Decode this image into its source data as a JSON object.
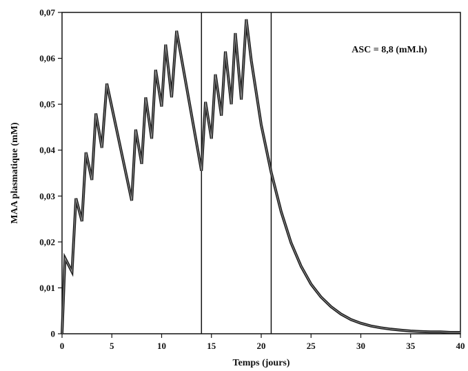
{
  "chart_data": {
    "type": "line",
    "title": "",
    "xlabel": "Temps (jours)",
    "ylabel": "MAA plasmatique (mM)",
    "xlim": [
      0,
      40
    ],
    "ylim": [
      0,
      0.07
    ],
    "grid": false,
    "x_ticks": [
      0,
      5,
      10,
      15,
      20,
      25,
      30,
      35,
      40
    ],
    "x_tick_labels": [
      "0",
      "5",
      "10",
      "15",
      "20",
      "25",
      "30",
      "35",
      "40"
    ],
    "y_ticks": [
      0,
      0.01,
      0.02,
      0.03,
      0.04,
      0.05,
      0.06,
      0.07
    ],
    "y_tick_labels": [
      "0",
      "0,01",
      "0,02",
      "0,03",
      "0,04",
      "0,05",
      "0,06",
      "0,07"
    ],
    "annotation": "ASC = 8,8 (mM.h)",
    "vertical_lines_x": [
      14,
      21
    ],
    "series": [
      {
        "color": "#1a1a1a",
        "x": [
          0,
          0.3,
          1.0,
          1.4,
          2.0,
          2.4,
          3.0,
          3.4,
          4.0,
          4.5,
          7.0,
          7.4,
          8.0,
          8.4,
          9.0,
          9.4,
          10.0,
          10.4,
          11.0,
          11.5,
          14.0,
          14.4,
          15.0,
          15.4,
          16.0,
          16.4,
          17.0,
          17.4,
          18.0,
          18.5,
          19.0,
          20.0,
          21.0,
          22.0,
          23.0,
          24.0,
          25.0,
          26.0,
          27.0,
          28.0,
          29.0,
          30.0,
          31.0,
          32.0,
          33.0,
          34.0,
          35.0,
          36.0,
          37.0,
          38.0,
          39.0,
          40.0
        ],
        "y": [
          0,
          0.0165,
          0.0135,
          0.0295,
          0.0245,
          0.0395,
          0.0335,
          0.048,
          0.0405,
          0.0545,
          0.029,
          0.0445,
          0.037,
          0.0515,
          0.0425,
          0.0575,
          0.0495,
          0.063,
          0.0515,
          0.066,
          0.0355,
          0.0505,
          0.0425,
          0.0565,
          0.0475,
          0.0615,
          0.05,
          0.0655,
          0.051,
          0.0685,
          0.0595,
          0.0455,
          0.0352,
          0.0266,
          0.0198,
          0.0147,
          0.0108,
          0.008,
          0.0059,
          0.0043,
          0.0031,
          0.0023,
          0.0017,
          0.0013,
          0.001,
          0.0008,
          0.0006,
          0.0005,
          0.0004,
          0.0004,
          0.0003,
          0.0003
        ]
      }
    ]
  }
}
